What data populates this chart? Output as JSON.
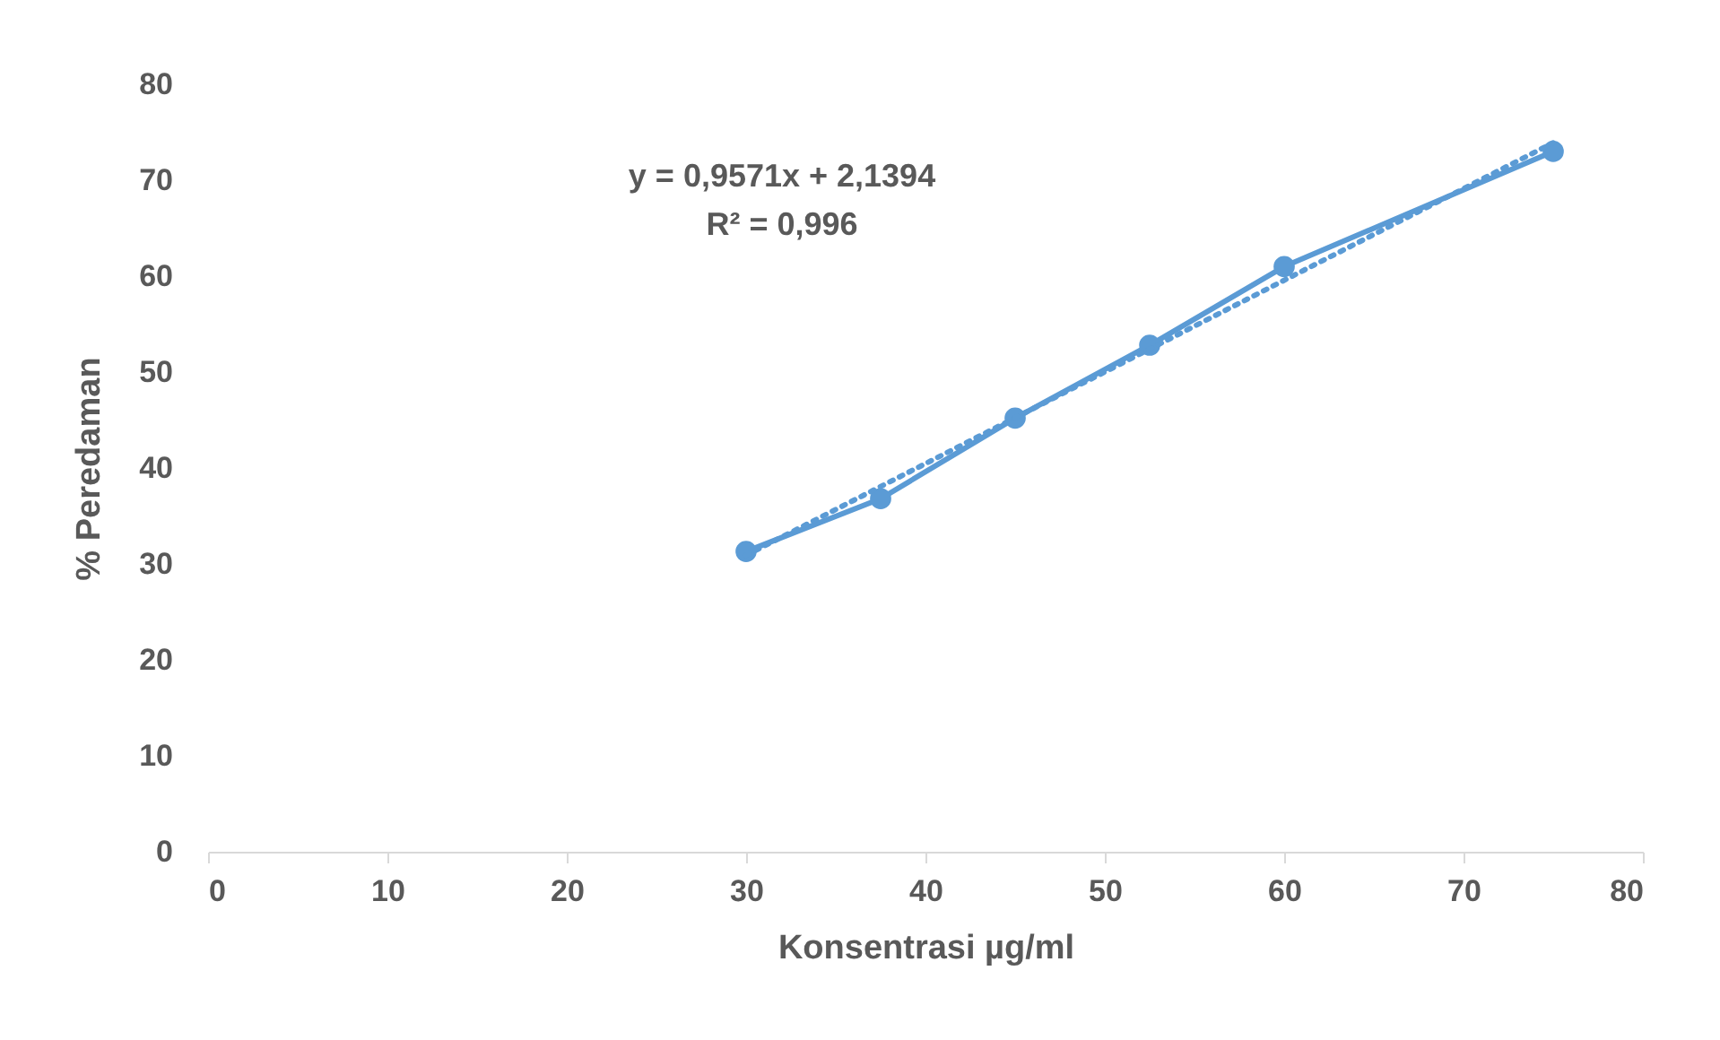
{
  "chart_data": {
    "type": "line",
    "xlabel": "Konsentrasi µg/ml",
    "ylabel": "% Peredaman",
    "x": [
      30,
      37.5,
      45,
      52.5,
      60,
      75
    ],
    "series": [
      {
        "color": "#5b9bd5",
        "values": [
          31.3,
          36.8,
          45.2,
          52.8,
          61,
          73
        ],
        "marker": "circle",
        "line_style": "solid"
      },
      {
        "type": "line",
        "color": "#5b9bd5",
        "x": [
          30,
          75
        ],
        "values": [
          30.9,
          73.9
        ],
        "marker": "none",
        "line_style": "dotted"
      }
    ],
    "annotations": [
      "y = 0,9571x + 2,1394",
      "R² = 0,996"
    ],
    "xlim": [
      0,
      80
    ],
    "xticks": [
      0,
      10,
      20,
      30,
      40,
      50,
      60,
      70,
      80
    ],
    "ylim": [
      0,
      80
    ],
    "yticks": [
      0,
      10,
      20,
      30,
      40,
      50,
      60,
      70,
      80
    ],
    "grid": false
  }
}
